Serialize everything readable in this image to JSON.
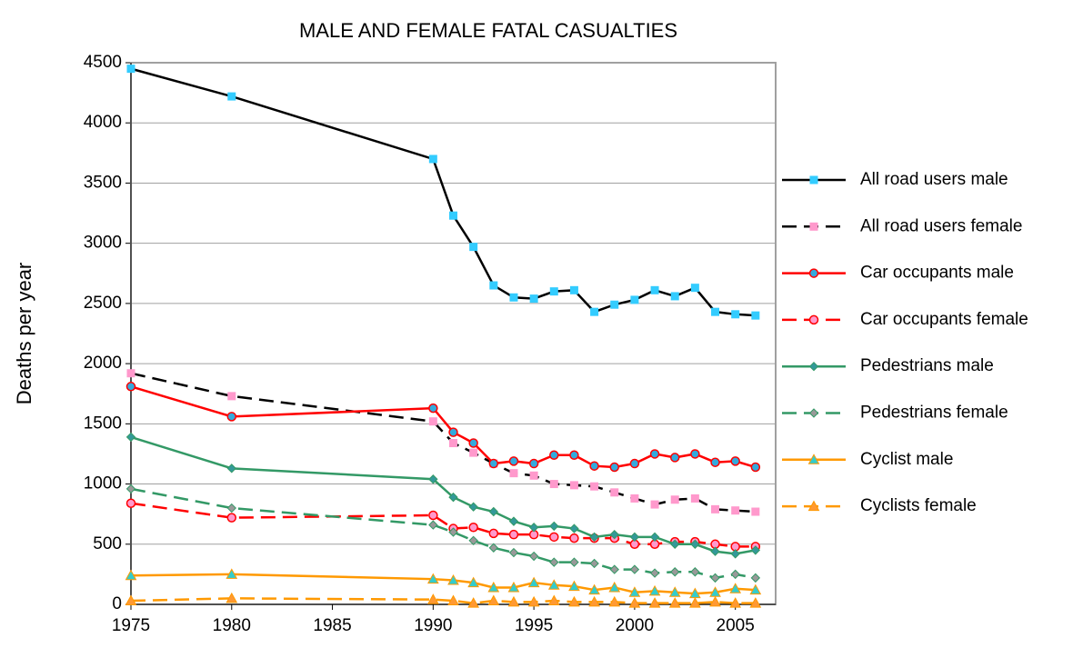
{
  "chart_data": {
    "type": "line",
    "title": "MALE AND FEMALE FATAL CASUALTIES",
    "y_label": "Deaths per year",
    "x": [
      1975,
      1980,
      1990,
      1991,
      1992,
      1993,
      1994,
      1995,
      1996,
      1997,
      1998,
      1999,
      2000,
      2001,
      2002,
      2003,
      2004,
      2005,
      2006
    ],
    "xlim": [
      1975,
      2007
    ],
    "xticks": [
      1975,
      1980,
      1985,
      1990,
      1995,
      2000,
      2005
    ],
    "ylim": [
      0,
      4500
    ],
    "yticks": [
      0,
      500,
      1000,
      1500,
      2000,
      2500,
      3000,
      3500,
      4000,
      4500
    ],
    "grid": true,
    "legend": "right",
    "series": [
      {
        "name": "All road users male",
        "color": "#000000",
        "dashed": false,
        "marker": "square",
        "marker_color": "#33ccff",
        "values": [
          4450,
          4220,
          3700,
          3230,
          2970,
          2650,
          2550,
          2540,
          2600,
          2610,
          2430,
          2490,
          2530,
          2610,
          2560,
          2630,
          2430,
          2410,
          2400
        ]
      },
      {
        "name": "All road users female",
        "color": "#000000",
        "dashed": true,
        "marker": "square",
        "marker_color": "#ff99cc",
        "values": [
          1920,
          1730,
          1520,
          1340,
          1260,
          1170,
          1090,
          1070,
          1000,
          990,
          980,
          930,
          880,
          830,
          870,
          880,
          790,
          780,
          770
        ]
      },
      {
        "name": "Car occupants male",
        "color": "#ff0000",
        "dashed": false,
        "marker": "circle",
        "marker_color": "#33aadd",
        "values": [
          1810,
          1560,
          1630,
          1430,
          1340,
          1170,
          1190,
          1170,
          1240,
          1240,
          1150,
          1140,
          1170,
          1250,
          1220,
          1250,
          1180,
          1190,
          1140
        ]
      },
      {
        "name": "Car occupants female",
        "color": "#ff0000",
        "dashed": true,
        "marker": "circle",
        "marker_color": "#ff99cc",
        "values": [
          840,
          720,
          740,
          630,
          640,
          590,
          580,
          580,
          560,
          550,
          550,
          550,
          500,
          500,
          520,
          520,
          500,
          480,
          480
        ]
      },
      {
        "name": "Pedestrians male",
        "color": "#339966",
        "dashed": false,
        "marker": "diamond",
        "marker_color": "#339999",
        "values": [
          1390,
          1130,
          1040,
          890,
          810,
          770,
          690,
          640,
          650,
          630,
          560,
          580,
          560,
          560,
          500,
          500,
          440,
          420,
          450
        ]
      },
      {
        "name": "Pedestrians female",
        "color": "#339966",
        "dashed": true,
        "marker": "diamond",
        "marker_color": "#999999",
        "values": [
          960,
          800,
          660,
          600,
          530,
          470,
          430,
          400,
          350,
          350,
          340,
          290,
          290,
          260,
          270,
          270,
          220,
          250,
          220
        ]
      },
      {
        "name": "Cyclist male",
        "color": "#ff9900",
        "dashed": false,
        "marker": "triangle",
        "marker_color": "#33cccc",
        "values": [
          240,
          250,
          210,
          200,
          180,
          140,
          140,
          180,
          160,
          150,
          120,
          140,
          100,
          110,
          100,
          90,
          100,
          130,
          120
        ]
      },
      {
        "name": "Cyclists female",
        "color": "#ff9900",
        "dashed": true,
        "marker": "triangle",
        "marker_color": "#ff9933",
        "values": [
          30,
          50,
          40,
          30,
          10,
          30,
          20,
          20,
          30,
          20,
          20,
          20,
          10,
          10,
          10,
          10,
          20,
          10,
          10
        ]
      }
    ]
  }
}
